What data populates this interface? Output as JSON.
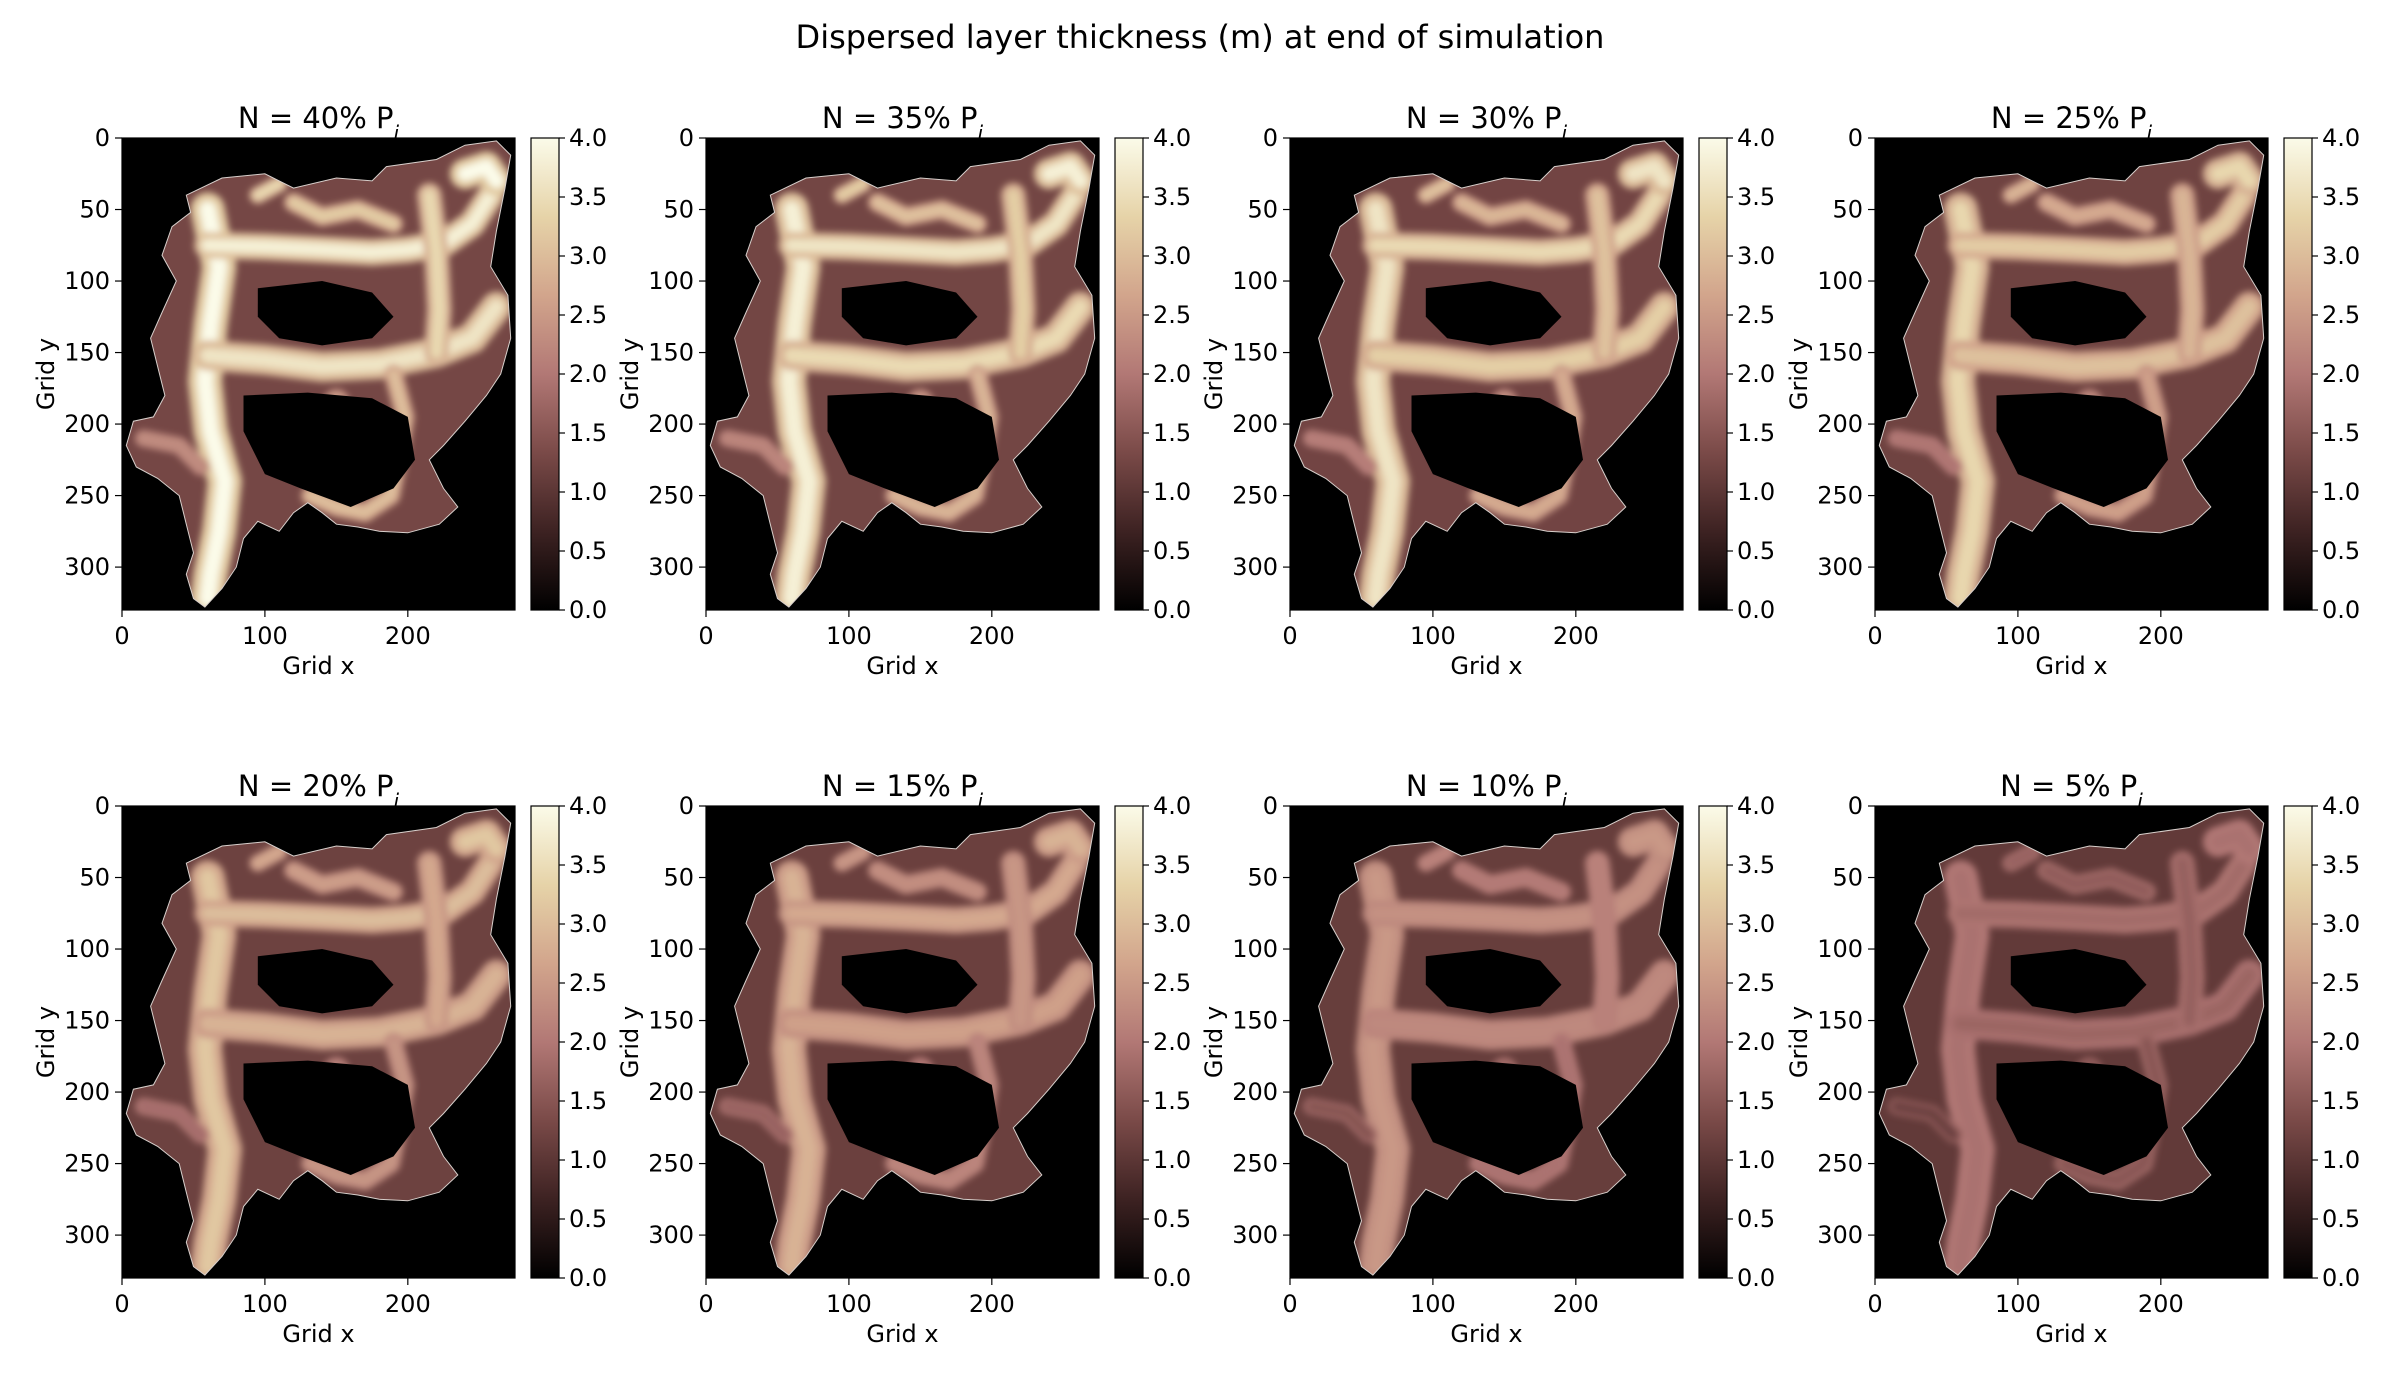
{
  "figure": {
    "suptitle": "Dispersed layer thickness (m) at end of simulation"
  },
  "chart_data": {
    "type": "heatmap",
    "xlabel": "Grid x",
    "ylabel": "Grid y",
    "xlim": [
      0,
      275
    ],
    "ylim": [
      330,
      0
    ],
    "x_ticks": [
      0,
      100,
      200
    ],
    "y_ticks": [
      0,
      50,
      100,
      150,
      200,
      250,
      300
    ],
    "colorbar": {
      "range": [
        0.0,
        4.0
      ],
      "ticks": [
        "0.0",
        "0.5",
        "1.0",
        "1.5",
        "2.0",
        "2.5",
        "3.0",
        "3.5",
        "4.0"
      ],
      "colormap": [
        "#000000",
        "#3d2222",
        "#7a4a48",
        "#b27875",
        "#d2a58c",
        "#e6d3a8",
        "#fbfbe9"
      ]
    },
    "background_color": "#000000",
    "panels": [
      {
        "title_main": "N = 40% P",
        "title_sub": "i",
        "intensity": 1.0
      },
      {
        "title_main": "N = 35% P",
        "title_sub": "i",
        "intensity": 0.95
      },
      {
        "title_main": "N = 30% P",
        "title_sub": "i",
        "intensity": 0.9
      },
      {
        "title_main": "N = 25% P",
        "title_sub": "i",
        "intensity": 0.84
      },
      {
        "title_main": "N = 20% P",
        "title_sub": "i",
        "intensity": 0.78
      },
      {
        "title_main": "N = 15% P",
        "title_sub": "i",
        "intensity": 0.7
      },
      {
        "title_main": "N = 10% P",
        "title_sub": "i",
        "intensity": 0.6
      },
      {
        "title_main": "N = 5% P",
        "title_sub": "i",
        "intensity": 0.45
      }
    ]
  }
}
